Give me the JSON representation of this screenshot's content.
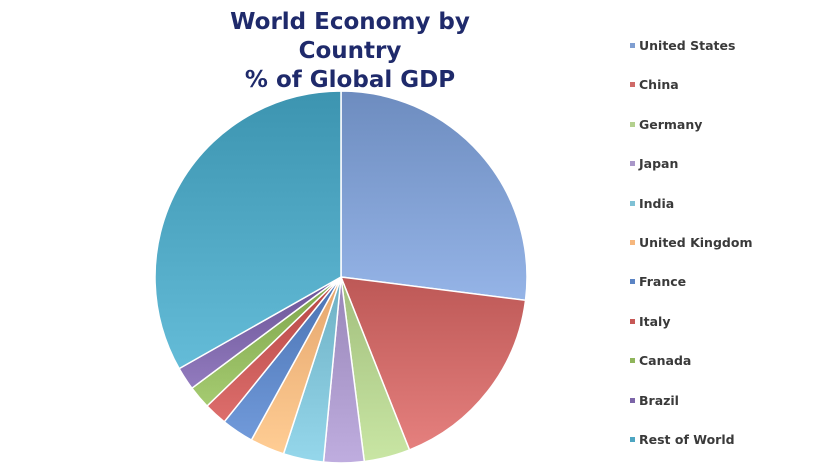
{
  "chart_data": {
    "type": "pie",
    "title": "World Economy by Country",
    "subtitle": "% of Global GDP",
    "legend_placement": "right",
    "slices": [
      {
        "label": "United States",
        "value": 27.0,
        "color": "#7f9ed1"
      },
      {
        "label": "China",
        "value": 17.0,
        "color": "#cf6a68"
      },
      {
        "label": "Germany",
        "value": 4.0,
        "color": "#b3d08e"
      },
      {
        "label": "Japan",
        "value": 3.5,
        "color": "#a997c9"
      },
      {
        "label": "India",
        "value": 3.5,
        "color": "#7fc1d5"
      },
      {
        "label": "United Kingdom",
        "value": 3.0,
        "color": "#f6b77e"
      },
      {
        "label": "France",
        "value": 2.8,
        "color": "#5b84c4"
      },
      {
        "label": "Italy",
        "value": 2.0,
        "color": "#c75856"
      },
      {
        "label": "Canada",
        "value": 2.0,
        "color": "#8fb55b"
      },
      {
        "label": "Brazil",
        "value": 2.0,
        "color": "#7c65a8"
      },
      {
        "label": "Rest of World",
        "value": 33.2,
        "color": "#4ea6c2"
      }
    ]
  }
}
